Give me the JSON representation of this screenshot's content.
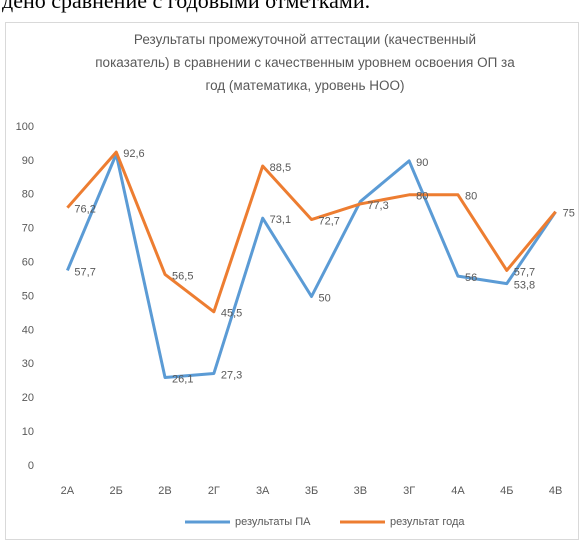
{
  "page_text": "дено сравнение с годовыми отметками.",
  "chart_data": {
    "type": "line",
    "title": "Результаты промежуточной аттестации (качественный показатель) в сравнении с качественным уровнем освоения ОП за год (математика, уровень НОО)",
    "categories": [
      "2А",
      "2Б",
      "2В",
      "2Г",
      "3А",
      "3Б",
      "3В",
      "3Г",
      "4А",
      "4Б",
      "4В"
    ],
    "series": [
      {
        "name": "результаты ПА",
        "color": "#5b9bd5",
        "values": [
          57.7,
          92,
          26.1,
          27.3,
          73.1,
          50,
          78,
          90,
          56,
          53.8,
          75
        ],
        "value_labels": [
          "57,7",
          null,
          "26,1",
          "27,3",
          "73,1",
          "50",
          null,
          "90",
          "56",
          "53,8",
          null
        ]
      },
      {
        "name": "результат года",
        "color": "#ed7d31",
        "values": [
          76.2,
          92.6,
          56.5,
          45.5,
          88.5,
          72.7,
          77.3,
          80,
          80,
          57.7,
          75
        ],
        "value_labels": [
          "76,2",
          "92,6",
          "56,5",
          "45,5",
          "88,5",
          "72,7",
          "77,3",
          "80",
          "80",
          "57,7",
          "75"
        ]
      }
    ],
    "ylim": [
      0,
      100
    ],
    "yticks": [
      0,
      10,
      20,
      30,
      40,
      50,
      60,
      70,
      80,
      90,
      100
    ],
    "grid": false,
    "legend": "bottom"
  }
}
